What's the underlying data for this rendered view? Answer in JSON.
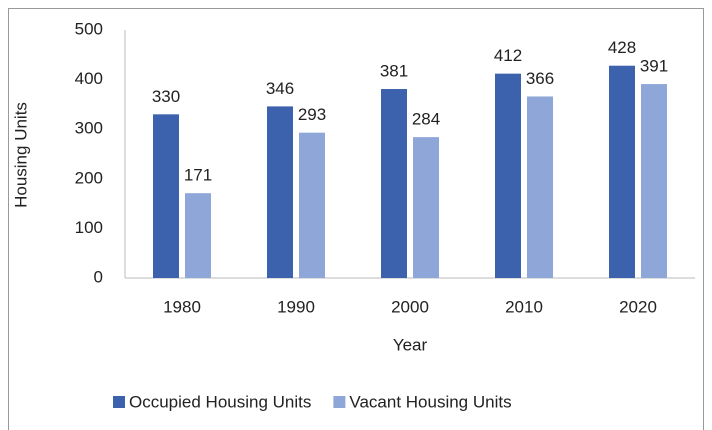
{
  "chart_data": {
    "type": "bar",
    "x_label": "Year",
    "y_label": "Housing Units",
    "categories": [
      "1980",
      "1990",
      "2000",
      "2010",
      "2020"
    ],
    "series": [
      {
        "name": "Occupied Housing Units",
        "color": "#3d62ad",
        "values": [
          330,
          346,
          381,
          412,
          428
        ]
      },
      {
        "name": "Vacant Housing Units",
        "color": "#8ea7d8",
        "values": [
          171,
          293,
          284,
          366,
          391
        ]
      }
    ],
    "ylim": [
      0,
      500
    ],
    "yticks": [
      0,
      100,
      200,
      300,
      400,
      500
    ],
    "grid": false,
    "legend": "bottom"
  }
}
